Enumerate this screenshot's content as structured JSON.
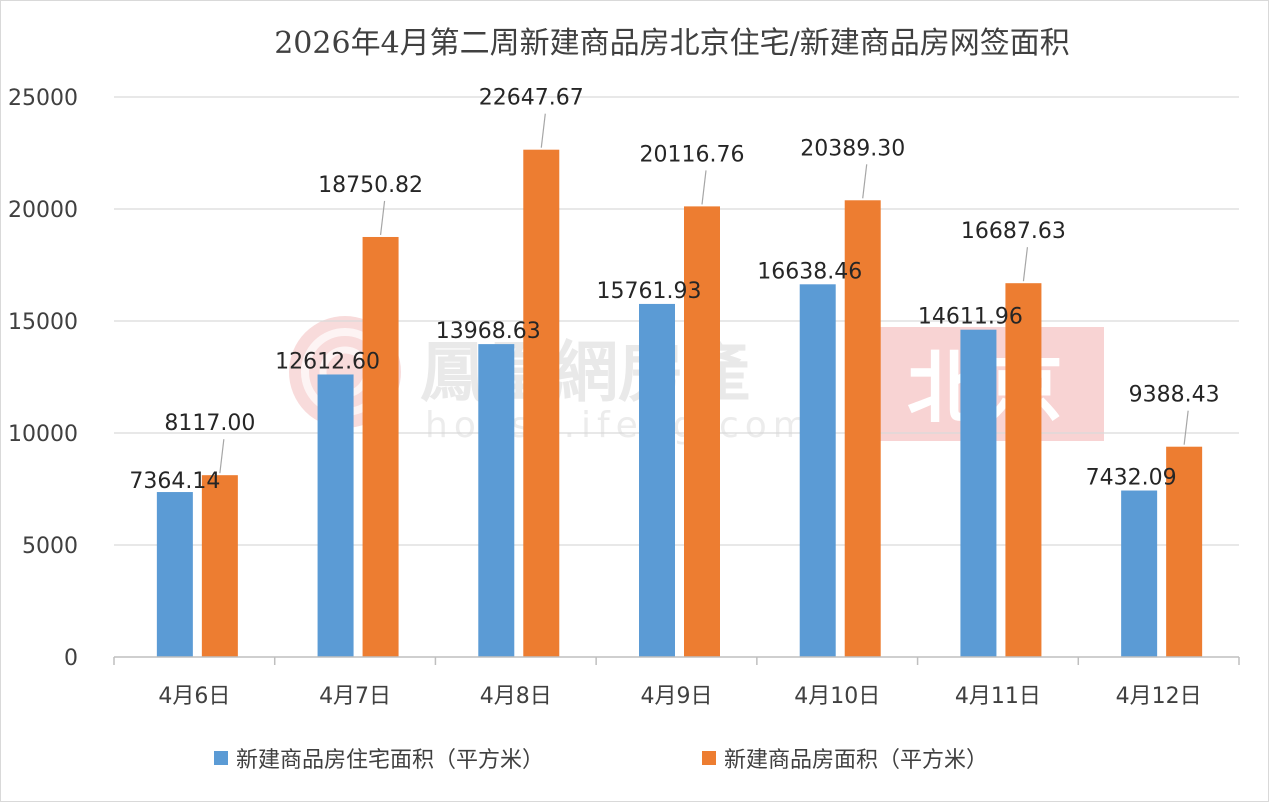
{
  "chart_data": {
    "type": "bar",
    "title": "2026年4月第二周新建商品房北京住宅/新建商品房网签面积",
    "categories": [
      "4月6日",
      "4月7日",
      "4月8日",
      "4月9日",
      "4月10日",
      "4月11日",
      "4月12日"
    ],
    "series": [
      {
        "name": "新建商品房住宅面积（平方米）",
        "color": "#5b9bd5",
        "values": [
          7364.14,
          12612.6,
          13968.63,
          15761.93,
          16638.46,
          14611.96,
          7432.09
        ],
        "labels": [
          "7364.14",
          "12612.60",
          "13968.63",
          "15761.93",
          "16638.46",
          "14611.96",
          "7432.09"
        ]
      },
      {
        "name": "新建商品房面积（平方米）",
        "color": "#ed7d31",
        "values": [
          8117.0,
          18750.82,
          22647.67,
          20116.76,
          20389.3,
          16687.63,
          9388.43
        ],
        "labels": [
          "8117.00",
          "18750.82",
          "22647.67",
          "20116.76",
          "20389.30",
          "16687.63",
          "9388.43"
        ]
      }
    ],
    "ylim": [
      0,
      25000
    ],
    "yticks": [
      "0",
      "5000",
      "10000",
      "15000",
      "20000",
      "25000"
    ],
    "grid": true,
    "legend_position": "bottom"
  },
  "watermark": {
    "brand": "鳳凰網房產",
    "url": "house.ifeng.com",
    "city": "北京",
    "city_box_color": "#f6c8c8",
    "logo_color": "#f2b8b8"
  }
}
